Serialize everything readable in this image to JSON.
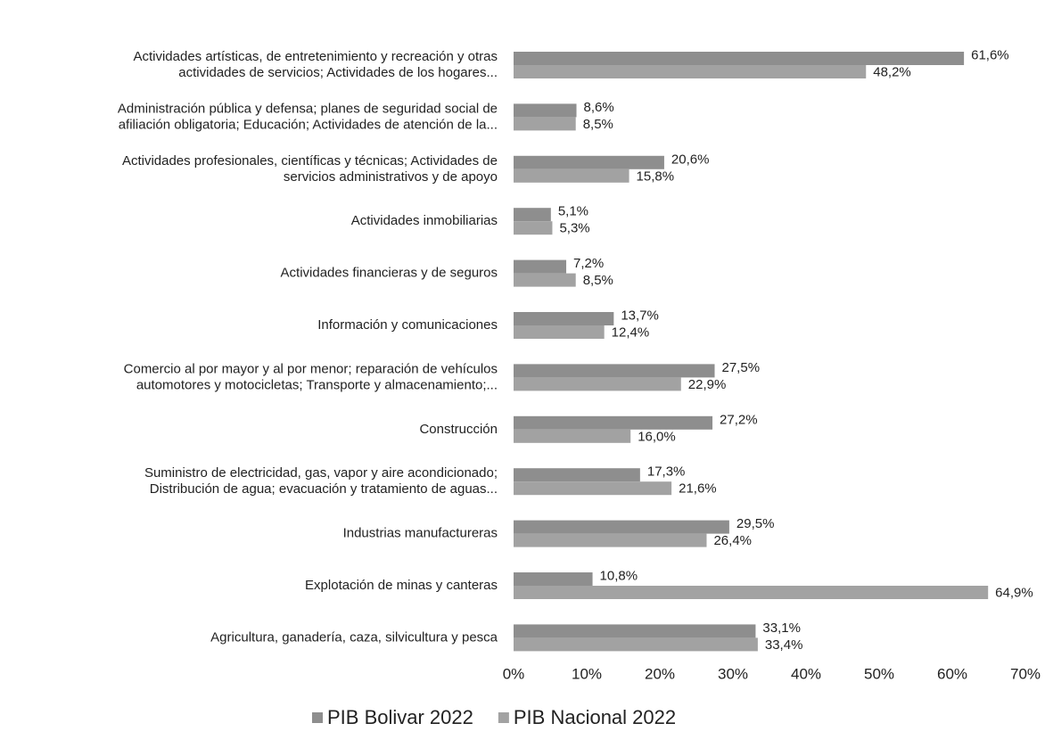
{
  "chart_data": {
    "type": "hbar",
    "categories": [
      "Actividades artísticas, de entretenimiento y recreación y otras\nactividades de servicios; Actividades de los hogares...",
      "Administración pública y defensa; planes de seguridad social de\nafiliación obligatoria; Educación; Actividades de atención de la...",
      "Actividades profesionales, científicas y técnicas; Actividades de\nservicios administrativos y de apoyo",
      "Actividades inmobiliarias",
      "Actividades financieras y de seguros",
      "Información y comunicaciones",
      "Comercio al por mayor y al por menor; reparación de vehículos\nautomotores y motocicletas; Transporte y almacenamiento;...",
      "Construcción",
      "Suministro de electricidad, gas, vapor y aire acondicionado;\nDistribución de agua; evacuación y tratamiento de aguas...",
      "Industrias manufactureras",
      "Explotación de minas y canteras",
      "Agricultura, ganadería, caza, silvicultura y pesca"
    ],
    "series": [
      {
        "name": "PIB Bolivar 2022",
        "color": "#8e8e8e",
        "values": [
          61.6,
          8.6,
          20.6,
          5.1,
          7.2,
          13.7,
          27.5,
          27.2,
          17.3,
          29.5,
          10.8,
          33.1
        ],
        "value_labels": [
          "61,6%",
          "8,6%",
          "20,6%",
          "5,1%",
          "7,2%",
          "13,7%",
          "27,5%",
          "27,2%",
          "17,3%",
          "29,5%",
          "10,8%",
          "33,1%"
        ]
      },
      {
        "name": "PIB Nacional 2022",
        "color": "#a2a2a2",
        "values": [
          48.2,
          8.5,
          15.8,
          5.3,
          8.5,
          12.4,
          22.9,
          16.0,
          21.6,
          26.4,
          64.9,
          33.4
        ],
        "value_labels": [
          "48,2%",
          "8,5%",
          "15,8%",
          "5,3%",
          "8,5%",
          "12,4%",
          "22,9%",
          "16,0%",
          "21,6%",
          "26,4%",
          "64,9%",
          "33,4%"
        ]
      }
    ],
    "xlim": [
      0,
      70
    ],
    "xticks": [
      {
        "value": 0,
        "label": "0%"
      },
      {
        "value": 10,
        "label": "10%"
      },
      {
        "value": 20,
        "label": "20%"
      },
      {
        "value": 30,
        "label": "30%"
      },
      {
        "value": 40,
        "label": "40%"
      },
      {
        "value": 50,
        "label": "50%"
      },
      {
        "value": 60,
        "label": "60%"
      },
      {
        "value": 70,
        "label": "70%"
      }
    ],
    "legend": "bottom"
  }
}
